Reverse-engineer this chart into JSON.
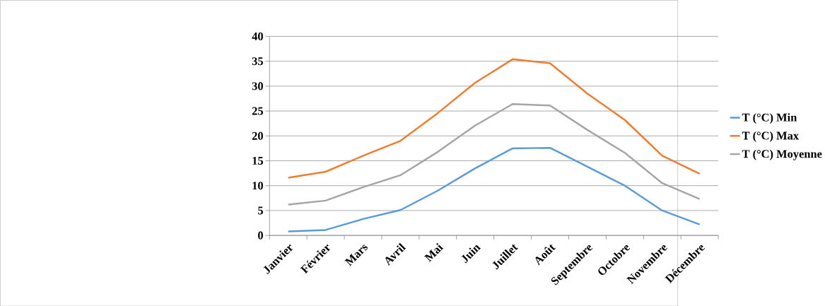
{
  "chart_data": {
    "type": "line",
    "categories": [
      "Janvier",
      "Février",
      "Mars",
      "Avril",
      "Mai",
      "Juin",
      "Juillet",
      "Août",
      "Septembre",
      "Octobre",
      "Novembre",
      "Décembre"
    ],
    "series": [
      {
        "name": "T (°C) Min",
        "color": "#5b9bd5",
        "values": [
          0.8,
          1.1,
          3.3,
          5.1,
          9.0,
          13.5,
          17.5,
          17.6,
          13.8,
          10.0,
          5.0,
          2.2
        ]
      },
      {
        "name": "T (°C) Max",
        "color": "#ed7d31",
        "values": [
          11.6,
          12.8,
          16.0,
          19.0,
          24.6,
          30.7,
          35.4,
          34.6,
          28.5,
          23.2,
          16.0,
          12.4
        ]
      },
      {
        "name": "T (°C) Moyenne",
        "color": "#a5a5a5",
        "values": [
          6.2,
          7.0,
          9.7,
          12.1,
          16.8,
          22.1,
          26.4,
          26.1,
          21.2,
          16.6,
          10.5,
          7.3
        ]
      }
    ],
    "ylim": [
      0,
      40
    ],
    "yticks": [
      0,
      5,
      10,
      15,
      20,
      25,
      30,
      35,
      40
    ],
    "grid": "y",
    "legend": "right",
    "marker": "none",
    "line_style": "solid"
  }
}
